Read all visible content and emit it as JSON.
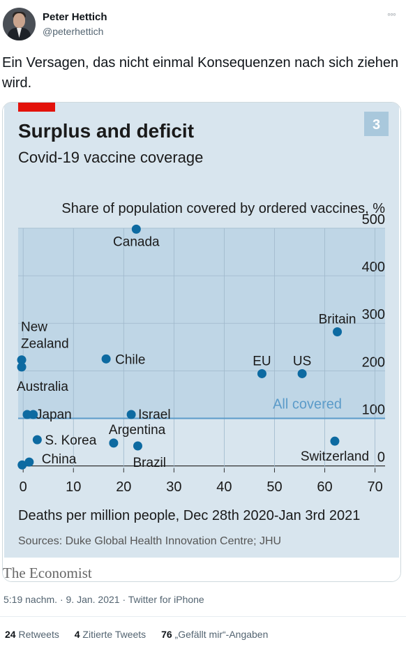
{
  "user": {
    "name": "Peter Hettich",
    "handle": "@peterhettich"
  },
  "more_icon": "ellipsis-icon",
  "tweet": {
    "text": "Ein Versagen, das nicht einmal Konsequenzen nach sich ziehen wird."
  },
  "meta": {
    "time": "5:19 nachm.",
    "date": "9. Jan. 2021",
    "source": "Twitter for iPhone"
  },
  "stats": {
    "retweets_count": "24",
    "retweets_label": "Retweets",
    "quotes_count": "4",
    "quotes_label": "Zitierte Tweets",
    "likes_count": "76",
    "likes_label": "„Gefällt mir“-Angaben"
  },
  "chart_data": {
    "type": "scatter",
    "title": "Surplus and deficit",
    "subtitle": "Covid-19 vaccine coverage",
    "badge": "3",
    "ylabel": "Share of population covered by ordered vaccines, %",
    "xlabel": "Deaths per million people, Dec 28th 2020-Jan 3rd 2021",
    "source": "Sources: Duke Global Health Innovation Centre; JHU",
    "brand": "The Economist",
    "xlim": [
      -1,
      72
    ],
    "ylim": [
      -5,
      500
    ],
    "x_ticks": [
      "0",
      "10",
      "20",
      "30",
      "40",
      "50",
      "60",
      "70"
    ],
    "y_ticks": [
      "0",
      "100",
      "200",
      "300",
      "400",
      "500"
    ],
    "reference_line": {
      "y": 100,
      "label": "All covered"
    },
    "grid": true,
    "colors": {
      "background": "#d8e5ee",
      "shaded": "#bfd6e6",
      "point": "#0d6aa1",
      "accent": "#e3120b",
      "reference": "#5b9bc9"
    },
    "points": [
      {
        "label": "Canada",
        "x": 22.5,
        "y": 498
      },
      {
        "label": "Britain",
        "x": 62.5,
        "y": 282
      },
      {
        "label": "New Zealand",
        "x": -0.3,
        "y": 223
      },
      {
        "label": "Australia",
        "x": -0.3,
        "y": 208
      },
      {
        "label": "Chile",
        "x": 16.5,
        "y": 225
      },
      {
        "label": "EU",
        "x": 47.5,
        "y": 194
      },
      {
        "label": "US",
        "x": 55.5,
        "y": 194
      },
      {
        "label": "Japan",
        "x": 0.8,
        "y": 108
      },
      {
        "label": "",
        "x": 2.0,
        "y": 108
      },
      {
        "label": "Israel",
        "x": 21.5,
        "y": 108
      },
      {
        "label": "S. Korea",
        "x": 2.8,
        "y": 55
      },
      {
        "label": "Argentina",
        "x": 18.0,
        "y": 48
      },
      {
        "label": "Brazil",
        "x": 22.8,
        "y": 42
      },
      {
        "label": "Switzerland",
        "x": 62.0,
        "y": 52
      },
      {
        "label": "China",
        "x": -0.2,
        "y": 2
      },
      {
        "label": "",
        "x": 1.2,
        "y": 8
      }
    ]
  }
}
